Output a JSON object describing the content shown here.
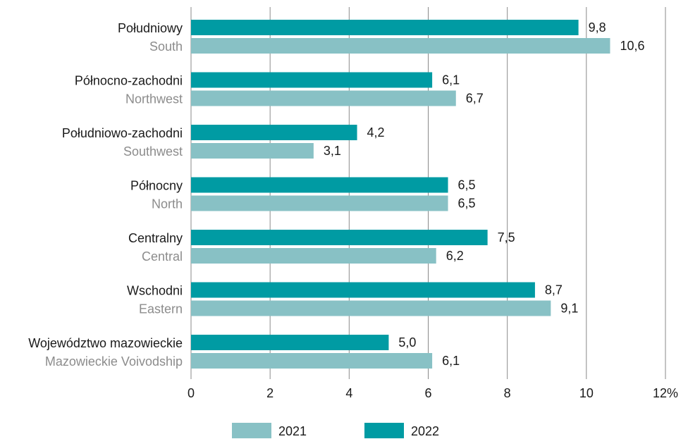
{
  "chart_data": {
    "type": "bar",
    "orientation": "horizontal",
    "categories": [
      {
        "pl": "Południowy",
        "en": "South"
      },
      {
        "pl": "Północno-zachodni",
        "en": "Northwest"
      },
      {
        "pl": "Południowo-zachodni",
        "en": "Southwest"
      },
      {
        "pl": "Północny",
        "en": "North"
      },
      {
        "pl": "Centralny",
        "en": "Central"
      },
      {
        "pl": "Wschodni",
        "en": "Eastern"
      },
      {
        "pl": "Województwo mazowieckie",
        "en": "Mazowieckie Voivodship"
      }
    ],
    "series": [
      {
        "name": "2022",
        "color": "#009ba3",
        "values": [
          9.8,
          6.1,
          4.2,
          6.5,
          7.5,
          8.7,
          5.0
        ],
        "labels": [
          "9,8",
          "6,1",
          "4,2",
          "6,5",
          "7,5",
          "8,7",
          "5,0"
        ]
      },
      {
        "name": "2021",
        "color": "#88c1c5",
        "values": [
          10.6,
          6.7,
          3.1,
          6.5,
          6.2,
          9.1,
          6.1
        ],
        "labels": [
          "10,6",
          "6,7",
          "3,1",
          "6,5",
          "6,2",
          "9,1",
          "6,1"
        ]
      }
    ],
    "xlim": [
      0,
      12
    ],
    "xticks": [
      "0",
      "2",
      "4",
      "6",
      "8",
      "10",
      "12%"
    ],
    "grid": "vertical",
    "legend": {
      "position": "bottom",
      "entries": [
        {
          "label": "2021",
          "color": "#88c1c5"
        },
        {
          "label": "2022",
          "color": "#009ba3"
        }
      ]
    }
  }
}
